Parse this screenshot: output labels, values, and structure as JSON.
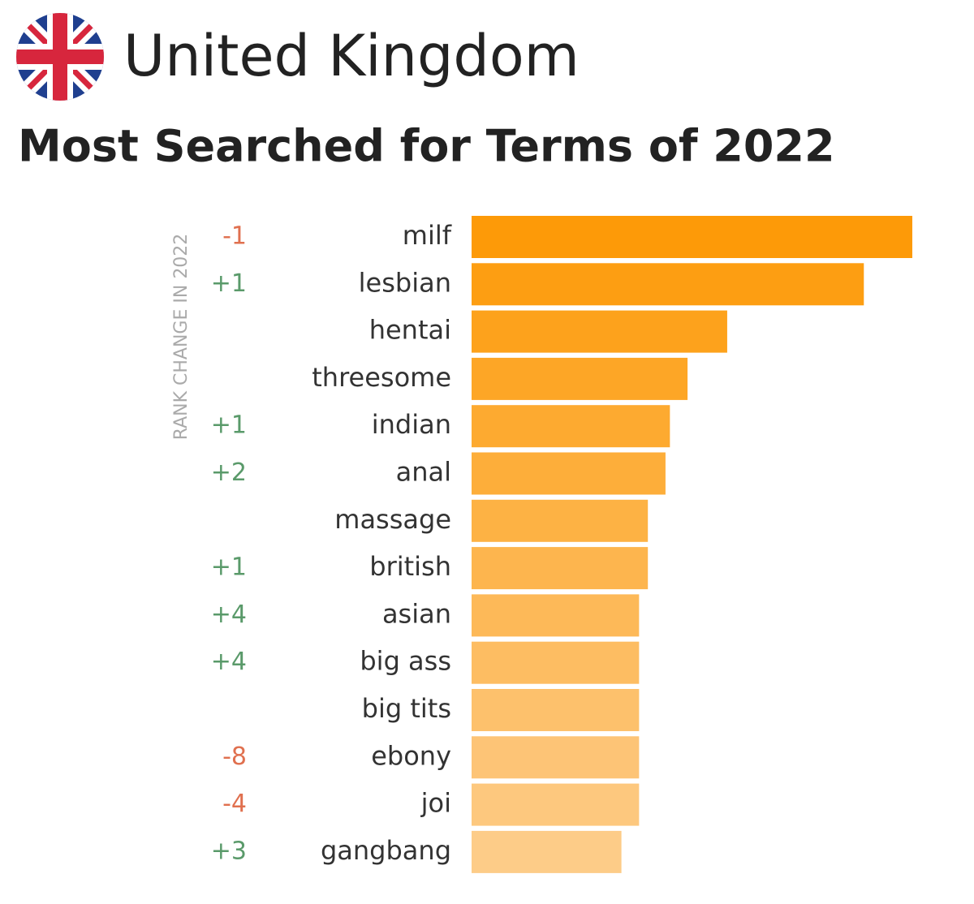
{
  "chart_data": {
    "type": "bar",
    "orientation": "horizontal",
    "title": "United Kingdom",
    "subtitle": "Most Searched for Terms of 2022",
    "rank_change_label": "RANK CHANGE IN 2022",
    "categories": [
      "milf",
      "lesbian",
      "hentai",
      "threesome",
      "indian",
      "anal",
      "massage",
      "british",
      "asian",
      "big ass",
      "big tits",
      "ebony",
      "joi",
      "gangbang"
    ],
    "rank_changes": [
      "-1",
      "+1",
      null,
      null,
      "+1",
      "+2",
      null,
      "+1",
      "+4",
      "+4",
      null,
      "-8",
      "-4",
      "+3"
    ],
    "values": [
      100,
      89,
      58,
      49,
      45,
      44,
      40,
      40,
      38,
      38,
      38,
      38,
      38,
      34
    ],
    "colors": [
      "#fd9a08",
      "#fd9e12",
      "#fda21c",
      "#fda626",
      "#fdaa30",
      "#fdae3a",
      "#fdb244",
      "#fdb54e",
      "#fdb958",
      "#fdbd62",
      "#fdc16c",
      "#fdc476",
      "#fdc87e",
      "#fdcc88"
    ],
    "positive_color": "#5a9a6a",
    "negative_color": "#e0704f",
    "xlim": [
      0,
      100
    ]
  }
}
